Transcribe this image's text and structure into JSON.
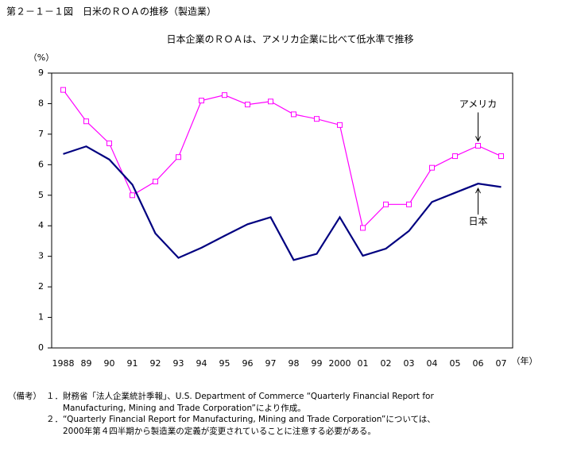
{
  "chart_data": {
    "type": "line",
    "title": "第２－１－１図　日米のＲＯＡの推移（製造業）",
    "subtitle": "日本企業のＲＯＡは、アメリカ企業に比べて低水準で推移",
    "y_label": "（%）",
    "x_label": "（年）",
    "categories": [
      "1988",
      "89",
      "90",
      "91",
      "92",
      "93",
      "94",
      "95",
      "96",
      "97",
      "98",
      "99",
      "2000",
      "01",
      "02",
      "03",
      "04",
      "05",
      "06",
      "07"
    ],
    "series": [
      {
        "name": "アメリカ",
        "color": "#ff00ff",
        "marker": "square",
        "values": [
          8.45,
          7.42,
          6.7,
          5.0,
          5.45,
          6.25,
          8.1,
          8.28,
          7.97,
          8.07,
          7.65,
          7.5,
          7.3,
          3.93,
          4.7,
          4.7,
          5.9,
          6.28,
          6.62,
          6.28
        ]
      },
      {
        "name": "日本",
        "color": "#000080",
        "marker": "none",
        "values": [
          6.35,
          6.6,
          6.17,
          5.35,
          3.75,
          2.95,
          3.28,
          3.67,
          4.05,
          4.28,
          2.88,
          3.08,
          4.28,
          3.02,
          3.25,
          3.83,
          4.78,
          5.08,
          5.38,
          5.27
        ]
      }
    ],
    "ylim": [
      0,
      9
    ],
    "yticks": [
      0,
      1,
      2,
      3,
      4,
      5,
      6,
      7,
      8,
      9
    ],
    "grid": false,
    "notes": {
      "label": "（備考）",
      "lines": [
        "１．財務省「法人企業統計季報」、U.S. Department of Commerce “Quarterly Financial Report for",
        "　　Manufacturing, Mining and Trade Corporation”により作成。",
        "２．“Quarterly Financial Report for Manufacturing, Mining and Trade Corporation”については、",
        "　　2000年第４四半期から製造業の定義が変更されていることに注意する必要がある。"
      ]
    }
  }
}
